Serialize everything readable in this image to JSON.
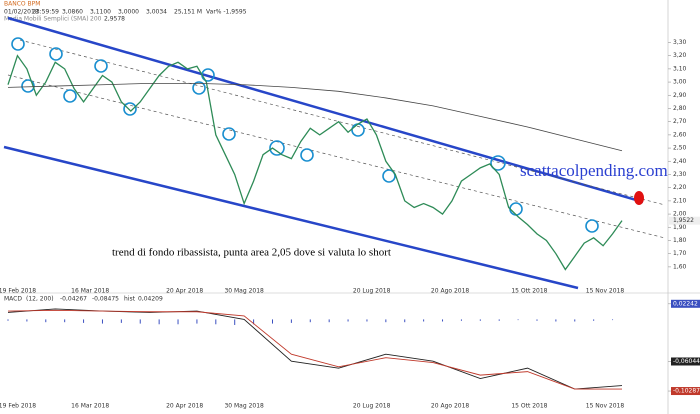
{
  "chart_data": [
    {
      "type": "line",
      "title": "BANCO BPM",
      "header": [
        "01/02/2018",
        "23:59:59",
        "3,0860",
        "3,1100",
        "3,0000",
        "3,0034",
        "25,151 M",
        "Var% -1,9595"
      ],
      "indicator": [
        "Media Mobili Semplici (SMA)",
        "200",
        "2,9578"
      ],
      "annotation": "trend di fondo ribassista, punta area 2,05 dove si valuta lo short",
      "watermark": "scattacolpending.com",
      "last_label": "1,9522",
      "xlim": [
        0,
        65
      ],
      "xticks": [
        {
          "value": 1,
          "label": "19 Feb 2018"
        },
        {
          "value": 8.7,
          "label": "16 Mar 2018"
        },
        {
          "value": 18.7,
          "label": "20 Apr 2018"
        },
        {
          "value": 25,
          "label": "30 Mag 2018"
        },
        {
          "value": 38.5,
          "label": "20 Lug 2018"
        },
        {
          "value": 46.8,
          "label": "20 Ago 2018"
        },
        {
          "value": 55.2,
          "label": "15 Ott 2018"
        },
        {
          "value": 63.2,
          "label": "15 Nov 2018"
        }
      ],
      "ylim": [
        1.44,
        3.44
      ],
      "yticks": [
        {
          "value": 3.3,
          "label": "3,30"
        },
        {
          "value": 3.2,
          "label": "3,20"
        },
        {
          "value": 3.1,
          "label": "3,10"
        },
        {
          "value": 3.0,
          "label": "3,00"
        },
        {
          "value": 2.9,
          "label": "2,90"
        },
        {
          "value": 2.8,
          "label": "2,80"
        },
        {
          "value": 2.7,
          "label": "2,70"
        },
        {
          "value": 2.6,
          "label": "2,60"
        },
        {
          "value": 2.5,
          "label": "2,50"
        },
        {
          "value": 2.4,
          "label": "2,40"
        },
        {
          "value": 2.3,
          "label": "2,30"
        },
        {
          "value": 2.2,
          "label": "2,20"
        },
        {
          "value": 2.1,
          "label": "2,10"
        },
        {
          "value": 2.0,
          "label": "2,00"
        },
        {
          "value": 1.9,
          "label": "1,90"
        },
        {
          "value": 1.8,
          "label": "1,80"
        },
        {
          "value": 1.7,
          "label": "1,70"
        },
        {
          "value": 1.6,
          "label": "1,60"
        }
      ],
      "series": [
        {
          "color": "#2e8b57",
          "x": [
            0,
            1,
            2,
            3,
            4,
            5,
            6,
            7,
            8,
            9,
            10,
            11,
            12,
            13,
            14,
            15,
            16,
            17,
            18,
            19,
            20,
            21,
            22,
            23,
            24,
            25,
            26,
            27,
            28,
            29,
            30,
            31,
            32,
            33,
            34,
            35,
            36,
            37,
            38,
            39,
            40,
            41,
            42,
            43,
            44,
            45,
            46,
            47,
            48,
            49,
            50,
            51,
            52,
            53,
            54,
            55,
            56,
            57,
            58,
            59,
            60,
            61,
            62,
            63,
            64,
            65
          ],
          "values": [
            2.98,
            3.2,
            3.1,
            2.9,
            3.0,
            3.15,
            3.1,
            2.95,
            2.85,
            2.95,
            3.05,
            3.0,
            2.85,
            2.78,
            2.85,
            2.95,
            3.05,
            3.12,
            3.15,
            3.1,
            3.12,
            3.0,
            2.6,
            2.45,
            2.3,
            2.08,
            2.25,
            2.45,
            2.5,
            2.45,
            2.42,
            2.55,
            2.65,
            2.6,
            2.65,
            2.7,
            2.62,
            2.68,
            2.72,
            2.6,
            2.4,
            2.3,
            2.1,
            2.05,
            2.08,
            2.05,
            2.0,
            2.1,
            2.25,
            2.3,
            2.35,
            2.38,
            2.3,
            2.05,
            1.98,
            1.92,
            1.85,
            1.8,
            1.7,
            1.58,
            1.68,
            1.78,
            1.82,
            1.76,
            1.85,
            1.95
          ]
        },
        {
          "color": "#444444",
          "x": [
            0,
            5,
            10,
            15,
            20,
            25,
            30,
            35,
            40,
            45,
            50,
            55,
            60,
            65
          ],
          "values": [
            2.96,
            2.97,
            2.98,
            2.99,
            2.99,
            2.98,
            2.96,
            2.93,
            2.88,
            2.82,
            2.74,
            2.66,
            2.57,
            2.48
          ]
        }
      ]
    },
    {
      "type": "macd",
      "title": "MACD",
      "params": "(12, 200)",
      "readings": [
        "-0,04267",
        "-0,08475",
        "hist",
        "0,04209"
      ],
      "xlim": [
        0,
        65
      ],
      "ylim": [
        -0.11,
        0.025
      ],
      "yticks": [
        {
          "value": 0.02242,
          "label": "0,02242"
        },
        {
          "value": -0.06044,
          "label": "-0,06044"
        },
        {
          "value": -0.10287,
          "label": "-0,10287"
        }
      ],
      "series": [
        {
          "color": "#222222",
          "x": [
            0,
            5,
            10,
            15,
            20,
            25,
            30,
            35,
            40,
            45,
            50,
            55,
            60,
            65
          ],
          "values": [
            0.01,
            0.015,
            0.012,
            0.01,
            0.012,
            0.0,
            -0.06,
            -0.07,
            -0.05,
            -0.06,
            -0.085,
            -0.07,
            -0.1,
            -0.095
          ]
        },
        {
          "color": "#c0392b",
          "x": [
            0,
            5,
            10,
            15,
            20,
            25,
            30,
            35,
            40,
            45,
            50,
            55,
            60,
            65
          ],
          "values": [
            0.012,
            0.013,
            0.012,
            0.011,
            0.011,
            0.005,
            -0.05,
            -0.068,
            -0.055,
            -0.062,
            -0.08,
            -0.075,
            -0.1,
            -0.1
          ]
        }
      ],
      "histogram": {
        "color": "#3a4fc0",
        "x": [
          0,
          2,
          4,
          6,
          8,
          10,
          12,
          14,
          16,
          18,
          20,
          22,
          24,
          26,
          28,
          30,
          32,
          34,
          36,
          38,
          40,
          42,
          44,
          46,
          48,
          50,
          52,
          54,
          56,
          58,
          60,
          62,
          64
        ],
        "values": [
          -0.002,
          -0.003,
          -0.004,
          -0.004,
          -0.005,
          -0.006,
          -0.005,
          -0.006,
          -0.007,
          -0.007,
          -0.006,
          -0.007,
          -0.008,
          -0.007,
          -0.006,
          -0.005,
          -0.004,
          -0.004,
          -0.003,
          -0.003,
          -0.004,
          -0.004,
          -0.003,
          -0.003,
          -0.002,
          -0.002,
          -0.002,
          -0.001,
          -0.002,
          -0.003,
          -0.003,
          -0.002,
          -0.001
        ]
      }
    }
  ]
}
